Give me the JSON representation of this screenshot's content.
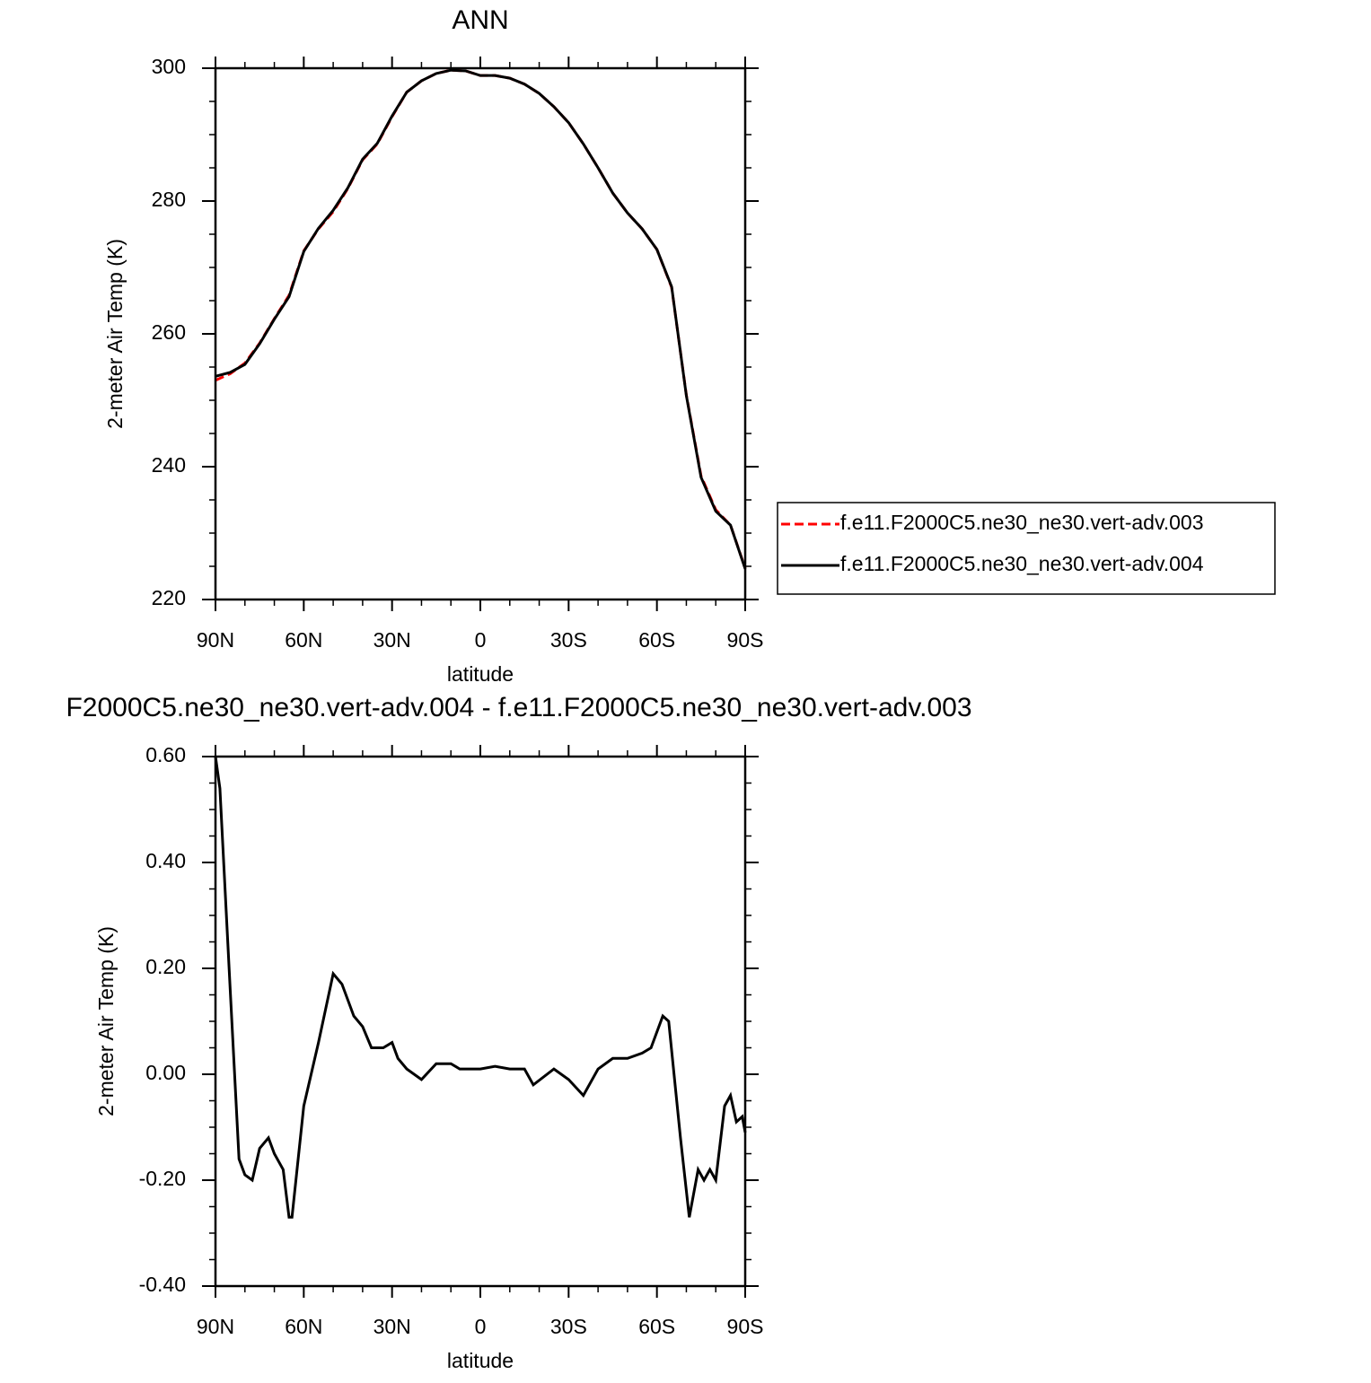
{
  "chart_data": [
    {
      "type": "line",
      "title": "ANN",
      "x_label": "latitude",
      "y_label": "2-meter Air Temp (K)",
      "x": [
        90,
        85,
        80,
        75,
        70,
        65,
        60,
        55,
        50,
        45,
        40,
        35,
        30,
        25,
        20,
        15,
        10,
        5,
        0,
        -5,
        -10,
        -15,
        -20,
        -25,
        -30,
        -35,
        -40,
        -45,
        -50,
        -55,
        -60,
        -65,
        -70,
        -75,
        -80,
        -85,
        -90
      ],
      "xlim": [
        90,
        -90
      ],
      "xticks": [
        {
          "value": 90,
          "label": "90N"
        },
        {
          "value": 60,
          "label": "60N"
        },
        {
          "value": 30,
          "label": "30N"
        },
        0,
        {
          "value": -30,
          "label": "30S"
        },
        {
          "value": -60,
          "label": "60S"
        },
        {
          "value": -90,
          "label": "90S"
        }
      ],
      "xminorticks": [
        80,
        70,
        50,
        40,
        20,
        10,
        -10,
        -20,
        -40,
        -50,
        -70,
        -80
      ],
      "ylim": [
        220,
        300
      ],
      "yticks": [
        220,
        240,
        260,
        280,
        300
      ],
      "yminorticks": [
        225,
        230,
        235,
        245,
        250,
        255,
        265,
        270,
        275,
        285,
        290,
        295
      ],
      "legend": "right",
      "series": [
        {
          "name": "f.e11.F2000C5.ne30_ne30.vert-adv.003",
          "color": "#ff0000",
          "dash": "dashed",
          "values": [
            253.0,
            254.0,
            255.6,
            258.6,
            262.3,
            265.8,
            272.5,
            275.8,
            278.4,
            281.9,
            286.2,
            288.6,
            292.7,
            296.4,
            298.1,
            299.2,
            299.7,
            299.6,
            298.9,
            298.9,
            298.5,
            297.6,
            296.2,
            294.2,
            291.8,
            288.6,
            285.0,
            281.2,
            278.2,
            275.8,
            272.7,
            267.0,
            250.8,
            238.6,
            233.5,
            231.2,
            224.7
          ]
        },
        {
          "name": "f.e11.F2000C5.ne30_ne30.vert-adv.004",
          "color": "#000000",
          "dash": "solid",
          "values": [
            253.6,
            254.2,
            255.4,
            258.5,
            262.2,
            265.6,
            272.4,
            275.9,
            278.6,
            282.0,
            286.3,
            288.7,
            292.8,
            296.4,
            298.1,
            299.2,
            299.7,
            299.6,
            298.9,
            298.9,
            298.5,
            297.6,
            296.2,
            294.2,
            291.8,
            288.6,
            285.0,
            281.2,
            278.2,
            275.8,
            272.7,
            267.1,
            250.7,
            238.4,
            233.3,
            231.2,
            224.6
          ]
        }
      ]
    },
    {
      "type": "line",
      "title": "F2000C5.ne30_ne30.vert-adv.004 - f.e11.F2000C5.ne30_ne30.vert-adv.003",
      "x_label": "latitude",
      "y_label": "2-meter Air Temp (K)",
      "x": [
        90,
        88.5,
        85,
        82,
        80,
        77.5,
        75,
        72,
        70,
        67,
        65,
        64,
        60,
        55,
        50,
        47,
        43,
        40,
        37,
        33,
        30,
        28,
        25,
        20,
        15,
        10,
        7,
        0,
        -5,
        -10,
        -15,
        -18,
        -25,
        -30,
        -35,
        -40,
        -45,
        -50,
        -55,
        -58,
        -62,
        -64,
        -68,
        -71,
        -74,
        -76,
        -78,
        -80,
        -83,
        -85,
        -87,
        -89,
        -90
      ],
      "xlim": [
        90,
        -90
      ],
      "xticks": [
        {
          "value": 90,
          "label": "90N"
        },
        {
          "value": 60,
          "label": "60N"
        },
        {
          "value": 30,
          "label": "30N"
        },
        0,
        {
          "value": -30,
          "label": "30S"
        },
        {
          "value": -60,
          "label": "60S"
        },
        {
          "value": -90,
          "label": "90S"
        }
      ],
      "xminorticks": [
        80,
        70,
        50,
        40,
        20,
        10,
        -10,
        -20,
        -40,
        -50,
        -70,
        -80
      ],
      "ylim": [
        -0.4,
        0.6
      ],
      "yticks": [
        {
          "value": -0.4,
          "label": "-0.40"
        },
        {
          "value": -0.2,
          "label": "-0.20"
        },
        {
          "value": 0,
          "label": "0.00"
        },
        {
          "value": 0.2,
          "label": "0.20"
        },
        {
          "value": 0.4,
          "label": "0.40"
        },
        {
          "value": 0.6,
          "label": "0.60"
        }
      ],
      "yminorticks": [
        0.55,
        0.5,
        0.45,
        0.35,
        0.3,
        0.25,
        0.15,
        0.1,
        0.05,
        -0.05,
        -0.1,
        -0.15,
        -0.25,
        -0.3,
        -0.35
      ],
      "series": [
        {
          "color": "#000000",
          "dash": "solid",
          "values": [
            0.6,
            0.54,
            0.16,
            -0.16,
            -0.19,
            -0.2,
            -0.14,
            -0.12,
            -0.15,
            -0.18,
            -0.27,
            -0.27,
            -0.06,
            0.06,
            0.19,
            0.17,
            0.11,
            0.09,
            0.05,
            0.05,
            0.06,
            0.03,
            0.01,
            -0.01,
            0.02,
            0.02,
            0.01,
            0.01,
            0.015,
            0.01,
            0.01,
            -0.02,
            0.01,
            -0.01,
            -0.04,
            0.01,
            0.03,
            0.03,
            0.04,
            0.05,
            0.11,
            0.1,
            -0.12,
            -0.27,
            -0.18,
            -0.2,
            -0.18,
            -0.2,
            -0.06,
            -0.04,
            -0.09,
            -0.08,
            -0.11
          ]
        }
      ]
    }
  ]
}
